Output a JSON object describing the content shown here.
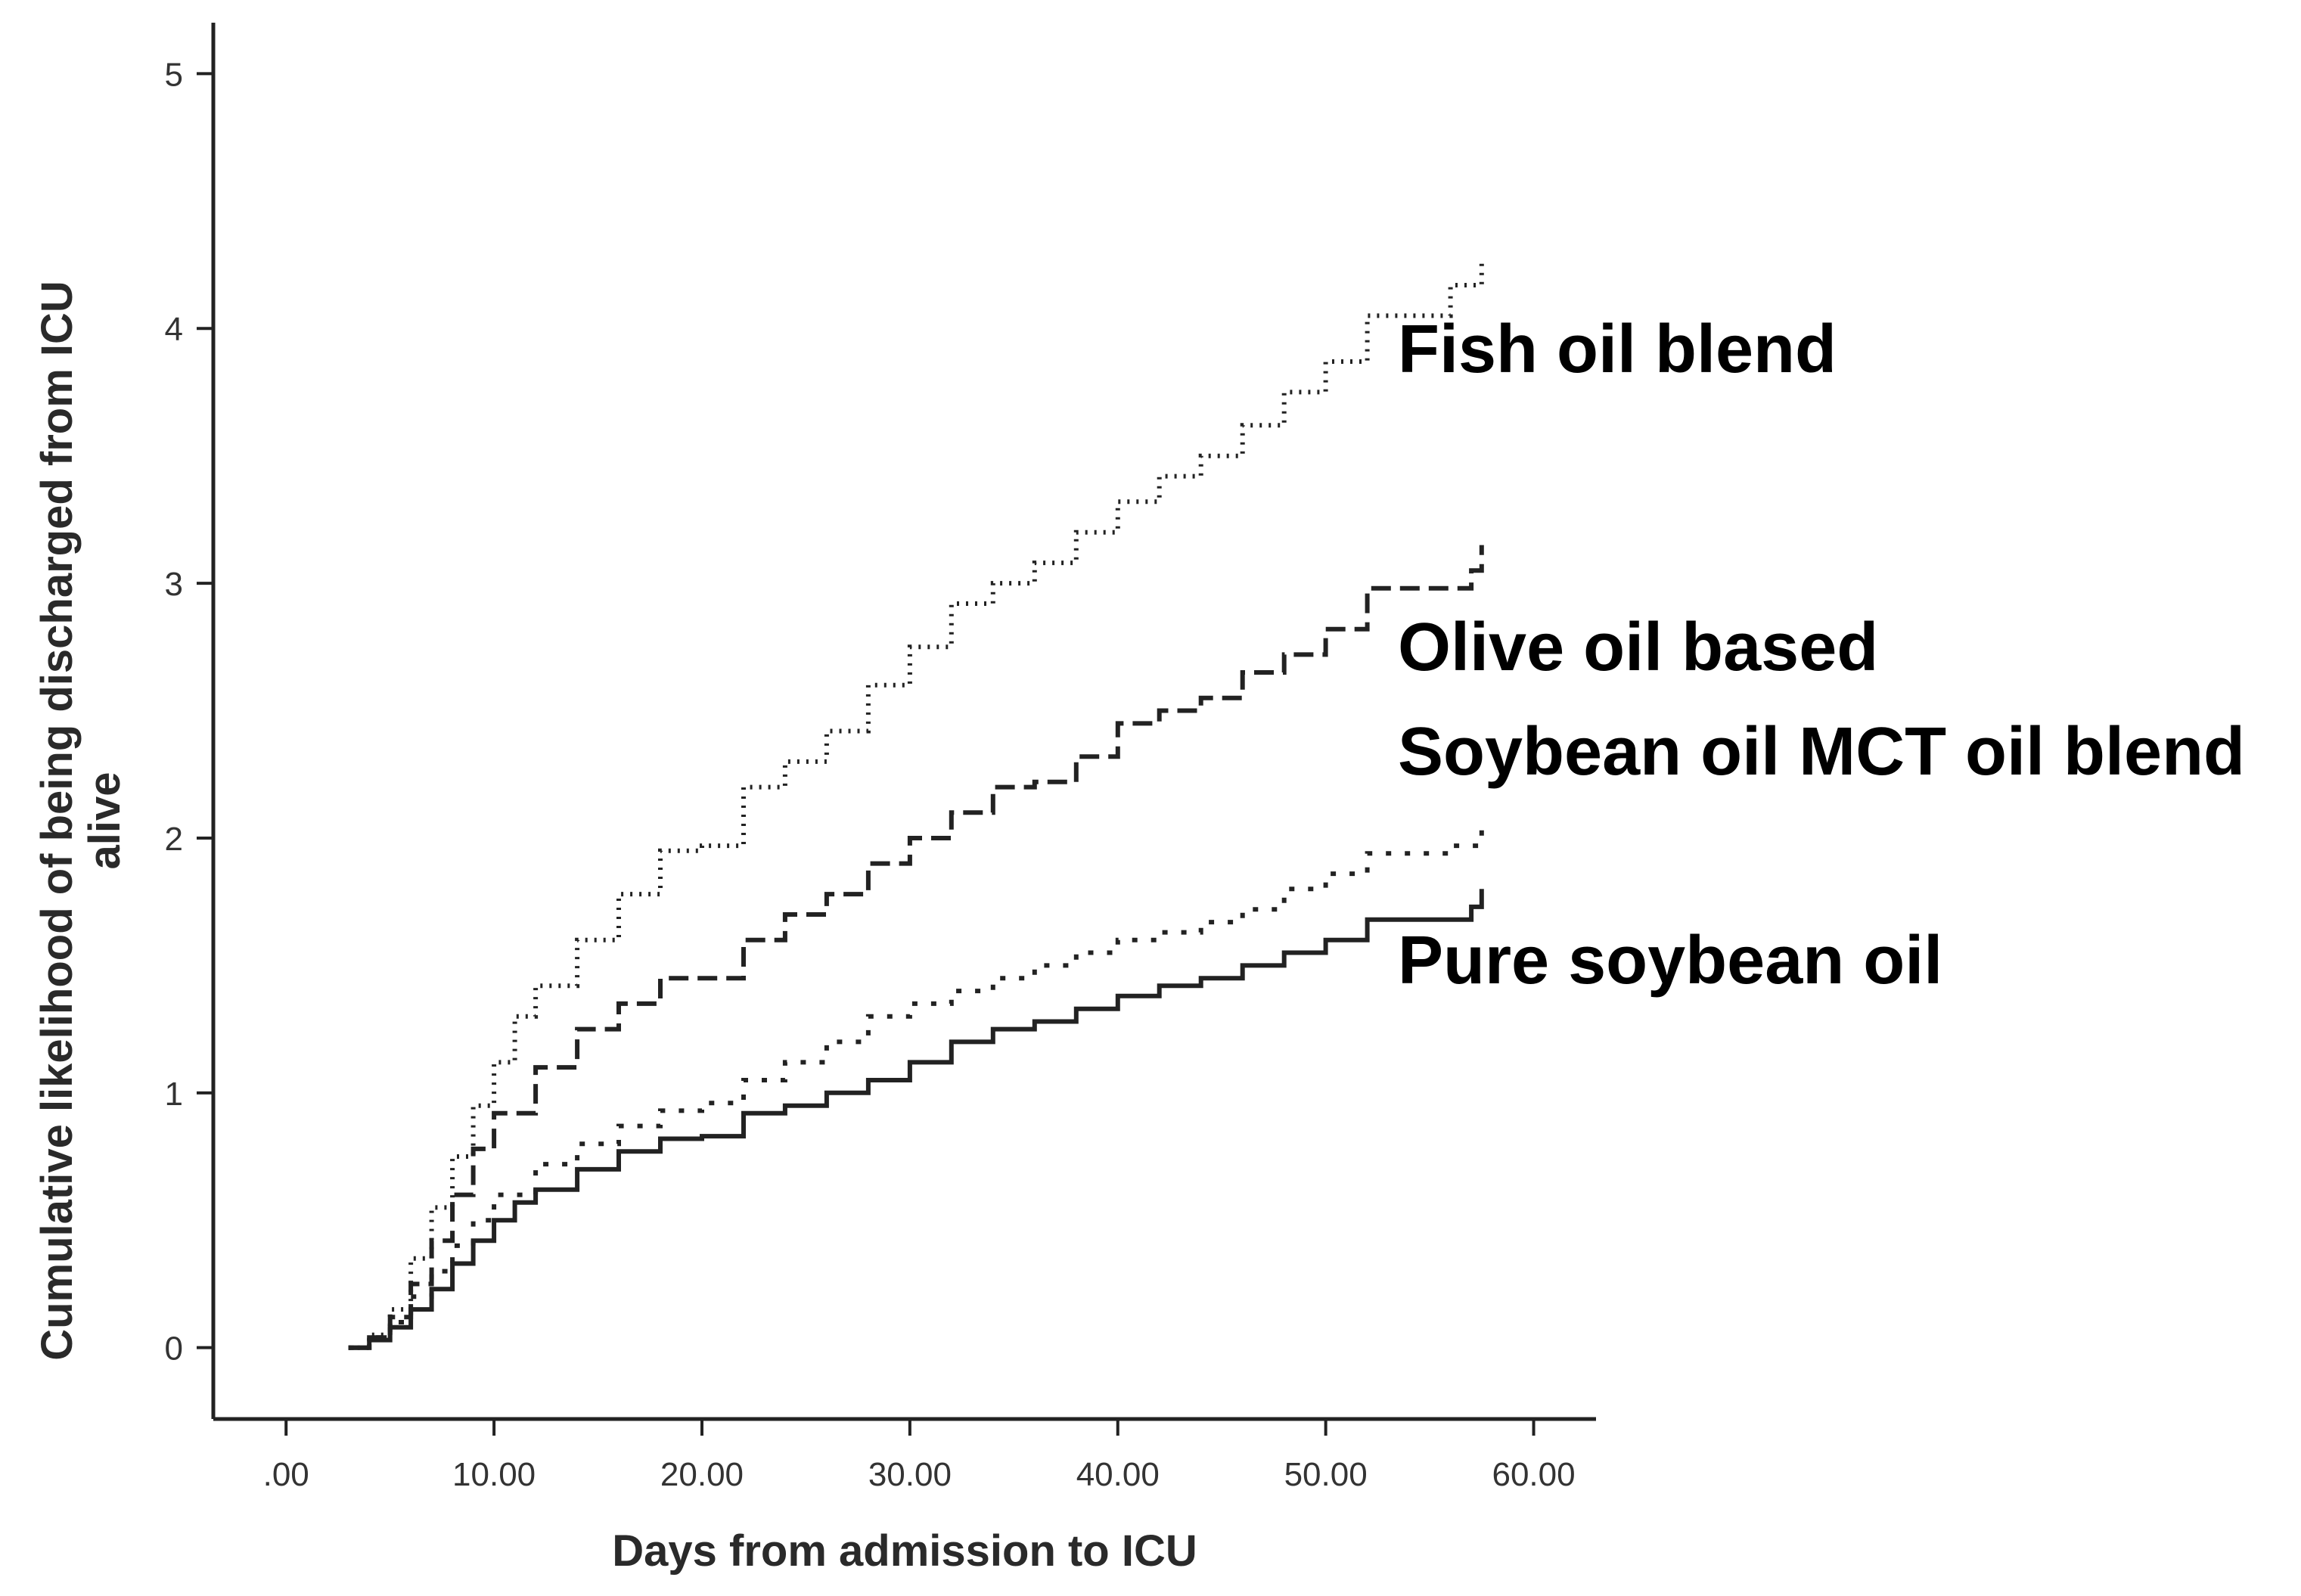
{
  "chart_data": {
    "type": "line",
    "step": true,
    "xlabel": "Days from admission to ICU",
    "ylabel_line1": "Cumulative likelihood of being discharged from ICU",
    "ylabel_line2": "alive",
    "xlim": [
      -3.5,
      63
    ],
    "ylim": [
      -0.28,
      5.2
    ],
    "xticks": [
      {
        "value": 0,
        "label": ".00"
      },
      {
        "value": 10,
        "label": "10.00"
      },
      {
        "value": 20,
        "label": "20.00"
      },
      {
        "value": 30,
        "label": "30.00"
      },
      {
        "value": 40,
        "label": "40.00"
      },
      {
        "value": 50,
        "label": "50.00"
      },
      {
        "value": 60,
        "label": "60.00"
      }
    ],
    "yticks": [
      {
        "value": 0,
        "label": "0"
      },
      {
        "value": 1,
        "label": "1"
      },
      {
        "value": 2,
        "label": "2"
      },
      {
        "value": 3,
        "label": "3"
      },
      {
        "value": 4,
        "label": "4"
      },
      {
        "value": 5,
        "label": "5"
      }
    ],
    "grid": false,
    "series": [
      {
        "name": "Fish oil blend",
        "line_style": "dotted",
        "points": [
          [
            3,
            0
          ],
          [
            4,
            0.05
          ],
          [
            5,
            0.15
          ],
          [
            6,
            0.35
          ],
          [
            7,
            0.55
          ],
          [
            8,
            0.75
          ],
          [
            9,
            0.95
          ],
          [
            10,
            1.12
          ],
          [
            11,
            1.3
          ],
          [
            12,
            1.42
          ],
          [
            14,
            1.6
          ],
          [
            16,
            1.78
          ],
          [
            18,
            1.95
          ],
          [
            20,
            1.97
          ],
          [
            22,
            2.2
          ],
          [
            24,
            2.3
          ],
          [
            26,
            2.42
          ],
          [
            28,
            2.6
          ],
          [
            30,
            2.75
          ],
          [
            32,
            2.92
          ],
          [
            34,
            3.0
          ],
          [
            36,
            3.08
          ],
          [
            38,
            3.2
          ],
          [
            40,
            3.32
          ],
          [
            42,
            3.42
          ],
          [
            44,
            3.5
          ],
          [
            46,
            3.62
          ],
          [
            48,
            3.75
          ],
          [
            50,
            3.87
          ],
          [
            52,
            4.05
          ],
          [
            55,
            4.05
          ],
          [
            56,
            4.17
          ],
          [
            57.5,
            4.28
          ]
        ]
      },
      {
        "name": "Olive oil based",
        "line_style": "dashed",
        "points": [
          [
            3,
            0
          ],
          [
            4,
            0.04
          ],
          [
            5,
            0.12
          ],
          [
            6,
            0.25
          ],
          [
            7,
            0.42
          ],
          [
            8,
            0.6
          ],
          [
            9,
            0.78
          ],
          [
            10,
            0.92
          ],
          [
            12,
            1.1
          ],
          [
            14,
            1.25
          ],
          [
            16,
            1.35
          ],
          [
            18,
            1.45
          ],
          [
            20,
            1.45
          ],
          [
            22,
            1.6
          ],
          [
            24,
            1.7
          ],
          [
            26,
            1.78
          ],
          [
            28,
            1.9
          ],
          [
            30,
            2.0
          ],
          [
            32,
            2.1
          ],
          [
            34,
            2.2
          ],
          [
            36,
            2.22
          ],
          [
            38,
            2.32
          ],
          [
            40,
            2.45
          ],
          [
            42,
            2.5
          ],
          [
            44,
            2.55
          ],
          [
            46,
            2.65
          ],
          [
            48,
            2.72
          ],
          [
            50,
            2.82
          ],
          [
            52,
            2.98
          ],
          [
            56,
            2.98
          ],
          [
            57,
            3.05
          ],
          [
            57.5,
            3.15
          ]
        ]
      },
      {
        "name": "Soybean oil MCT oil blend",
        "line_style": "dotted-sparse",
        "points": [
          [
            3,
            0
          ],
          [
            4,
            0.04
          ],
          [
            5,
            0.1
          ],
          [
            6,
            0.2
          ],
          [
            7,
            0.3
          ],
          [
            8,
            0.4
          ],
          [
            9,
            0.5
          ],
          [
            10,
            0.6
          ],
          [
            12,
            0.72
          ],
          [
            14,
            0.8
          ],
          [
            16,
            0.87
          ],
          [
            18,
            0.93
          ],
          [
            20,
            0.96
          ],
          [
            22,
            1.05
          ],
          [
            24,
            1.12
          ],
          [
            26,
            1.2
          ],
          [
            28,
            1.3
          ],
          [
            30,
            1.35
          ],
          [
            32,
            1.4
          ],
          [
            34,
            1.45
          ],
          [
            36,
            1.5
          ],
          [
            38,
            1.55
          ],
          [
            40,
            1.6
          ],
          [
            42,
            1.63
          ],
          [
            44,
            1.67
          ],
          [
            46,
            1.72
          ],
          [
            48,
            1.8
          ],
          [
            50,
            1.86
          ],
          [
            52,
            1.94
          ],
          [
            55,
            1.94
          ],
          [
            56,
            1.97
          ],
          [
            57.5,
            2.05
          ]
        ]
      },
      {
        "name": "Pure soybean oil",
        "line_style": "solid",
        "points": [
          [
            3,
            0
          ],
          [
            4,
            0.03
          ],
          [
            5,
            0.08
          ],
          [
            6,
            0.15
          ],
          [
            7,
            0.23
          ],
          [
            8,
            0.33
          ],
          [
            9,
            0.42
          ],
          [
            10,
            0.5
          ],
          [
            11,
            0.57
          ],
          [
            12,
            0.62
          ],
          [
            14,
            0.7
          ],
          [
            16,
            0.77
          ],
          [
            18,
            0.82
          ],
          [
            20,
            0.83
          ],
          [
            22,
            0.92
          ],
          [
            24,
            0.95
          ],
          [
            26,
            1.0
          ],
          [
            28,
            1.05
          ],
          [
            30,
            1.12
          ],
          [
            32,
            1.2
          ],
          [
            34,
            1.25
          ],
          [
            36,
            1.28
          ],
          [
            38,
            1.33
          ],
          [
            40,
            1.38
          ],
          [
            42,
            1.42
          ],
          [
            44,
            1.45
          ],
          [
            46,
            1.5
          ],
          [
            48,
            1.55
          ],
          [
            50,
            1.6
          ],
          [
            52,
            1.68
          ],
          [
            56,
            1.68
          ],
          [
            57,
            1.73
          ],
          [
            57.5,
            1.8
          ]
        ]
      }
    ]
  }
}
